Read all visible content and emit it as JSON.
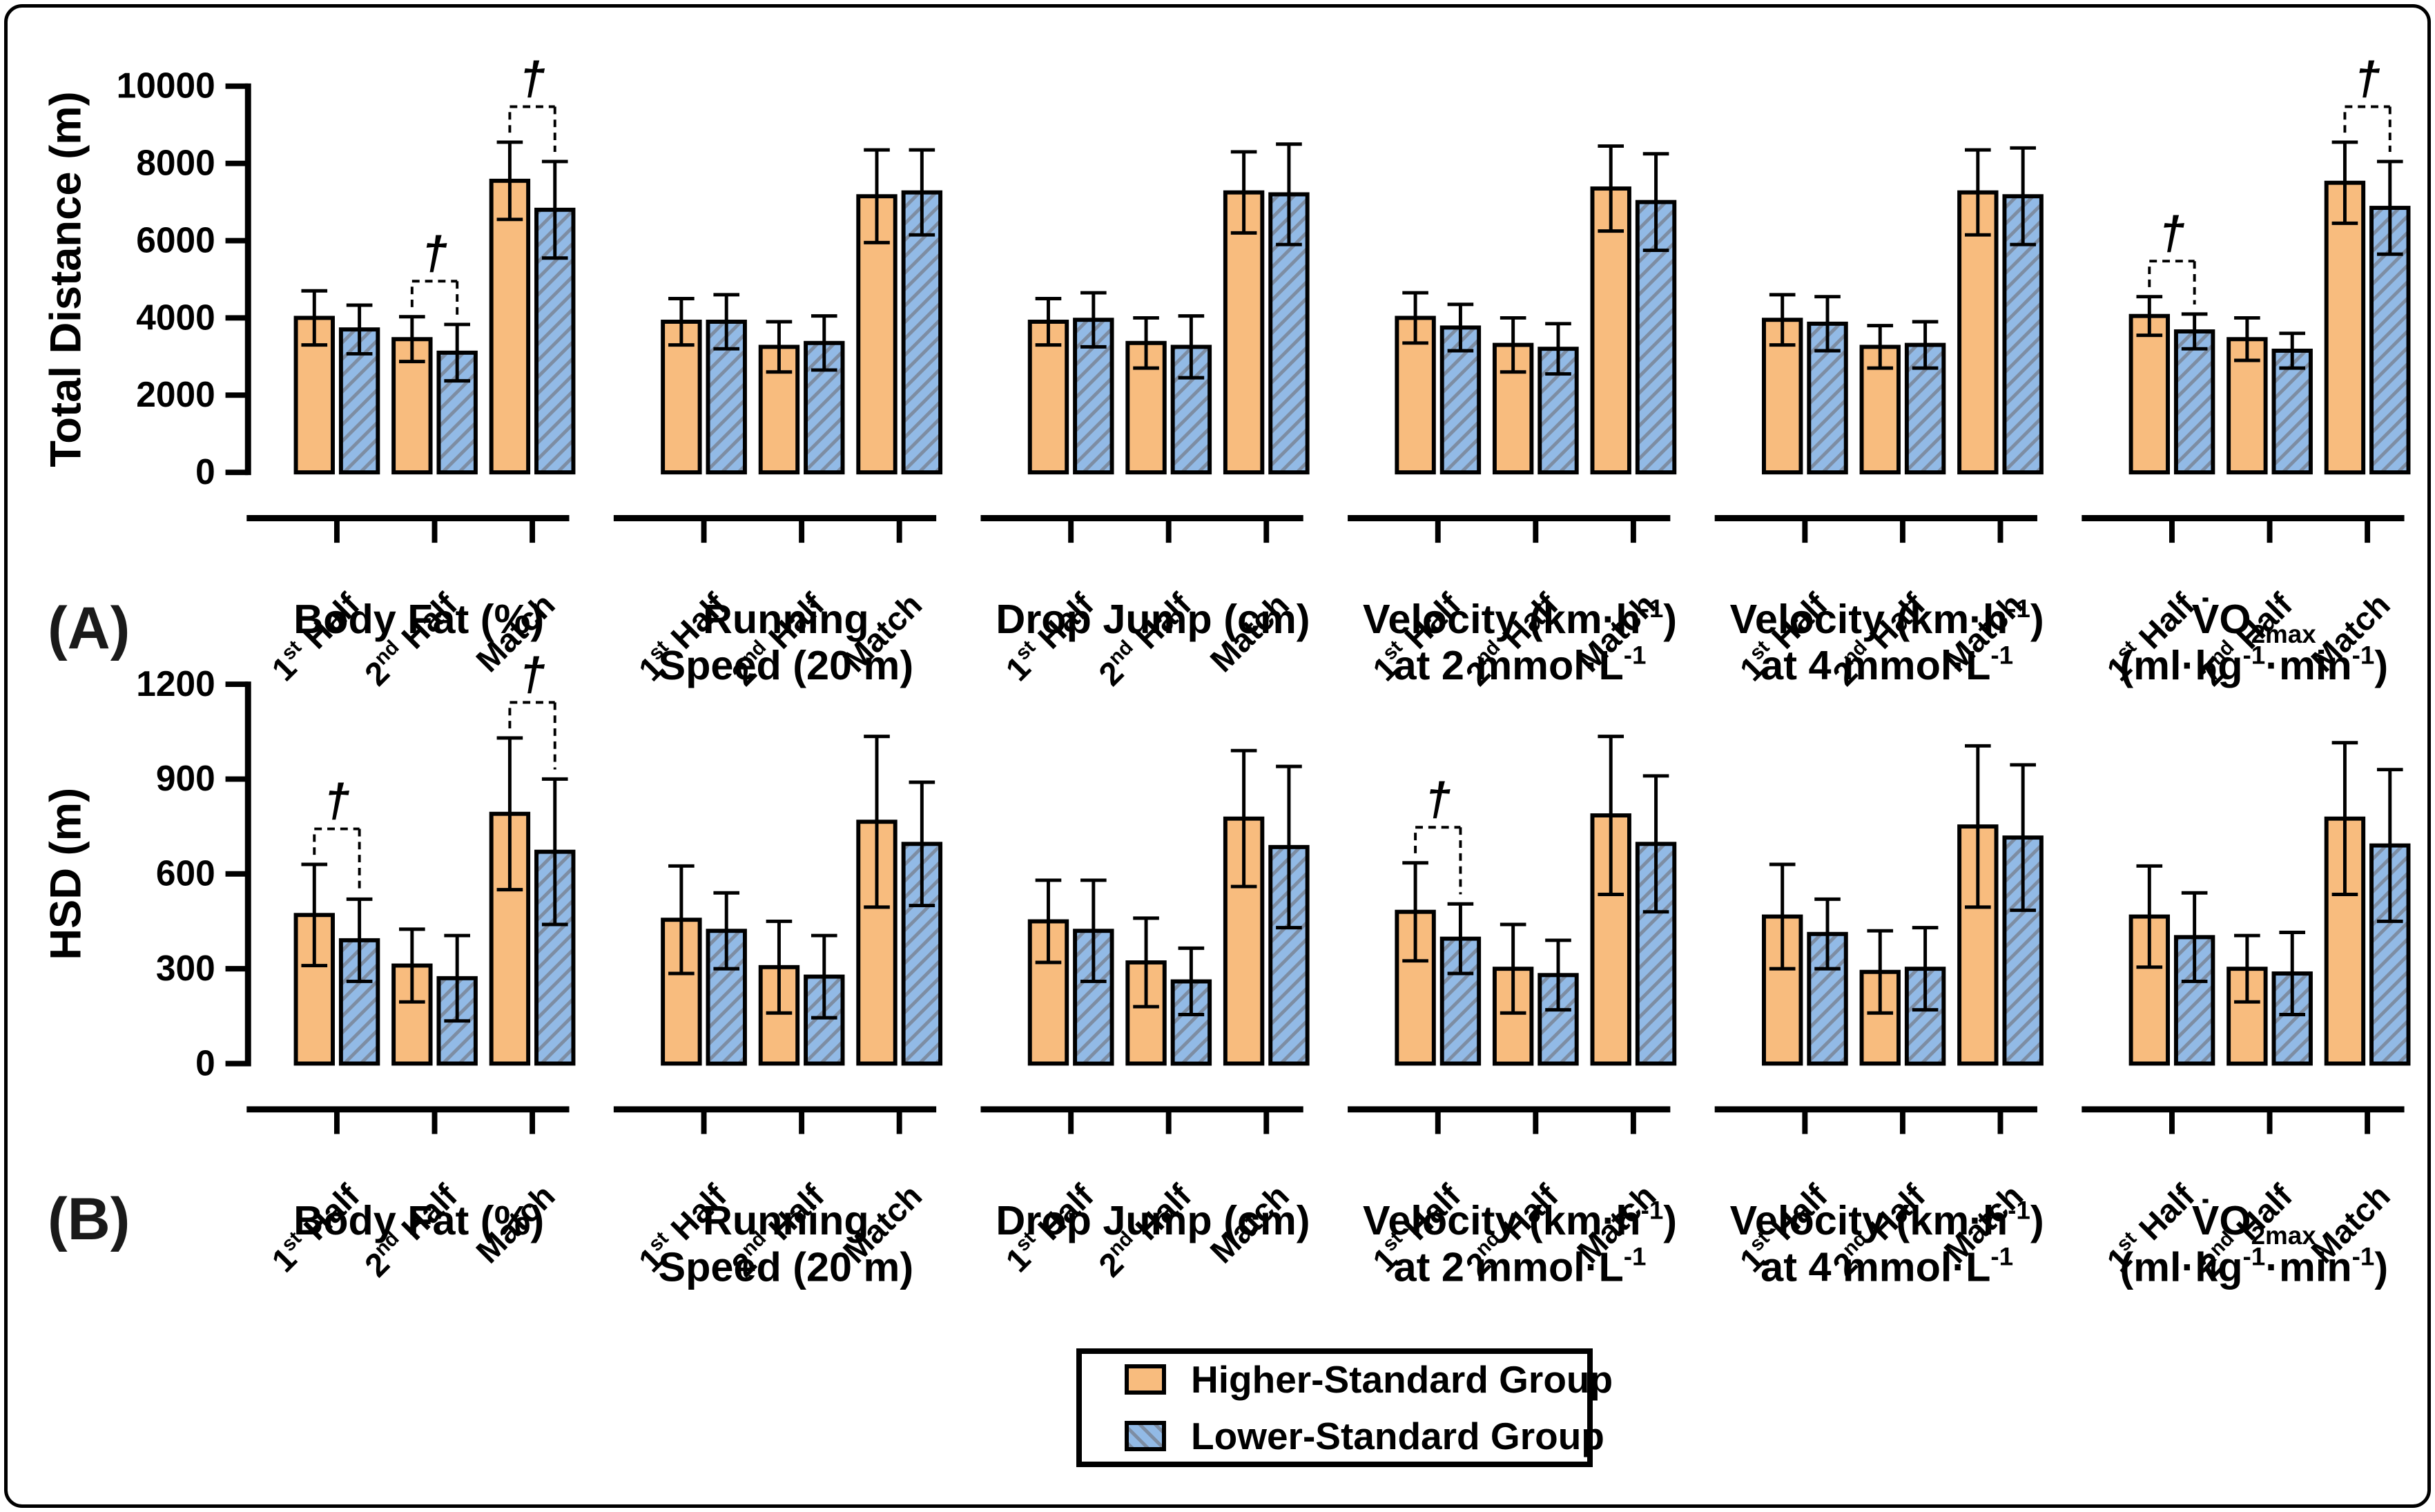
{
  "figure": {
    "row_labels": {
      "a": "(A)",
      "b": "(B)"
    },
    "legend": {
      "position": "bottom-center",
      "entries": [
        {
          "label": "Higher-Standard Group",
          "swatch": "solid-orange"
        },
        {
          "label": "Lower-Standard Group",
          "swatch": "hatched-blue"
        }
      ]
    },
    "colors": {
      "higher_fill": "#F8BC7E",
      "lower_fill": "#92BAE6",
      "lower_hatch": "#7D8DA3",
      "outline": "#000000"
    },
    "significance_symbol": "†"
  },
  "chart_data": {
    "type": "bar",
    "layout": {
      "rows": 2,
      "cols": 6,
      "grid": false,
      "legend_position": "bottom-center"
    },
    "groups": [
      "Higher-Standard Group",
      "Lower-Standard Group"
    ],
    "categories": [
      {
        "plain": "1st Half",
        "rich": [
          "1",
          {
            "sup": "st"
          },
          " Half"
        ]
      },
      {
        "plain": "2nd Half",
        "rich": [
          "2",
          {
            "sup": "nd"
          },
          " Half"
        ]
      },
      {
        "plain": "Match",
        "rich": [
          "Match"
        ]
      }
    ],
    "rows": [
      {
        "id": "A",
        "ylabel": "Total Distance (m)",
        "ylim": [
          0,
          10000
        ],
        "yticks": [
          0,
          2000,
          4000,
          6000,
          8000,
          10000
        ],
        "panels": [
          {
            "name": "body-fat",
            "title": {
              "plain": "Body Fat (%)",
              "lines": [
                [
                  "Body Fat (%)"
                ]
              ]
            },
            "series": [
              {
                "name": "Higher-Standard Group",
                "values": [
                  4000,
                  3450,
                  7550
                ],
                "errors": [
                  700,
                  580,
                  1000
                ]
              },
              {
                "name": "Lower-Standard Group",
                "values": [
                  3700,
                  3100,
                  6800
                ],
                "errors": [
                  630,
                  730,
                  1250
                ]
              }
            ],
            "sig_daggers": [
              1,
              2
            ]
          },
          {
            "name": "running-speed",
            "title": {
              "plain": "Running Speed (20 m)",
              "lines": [
                [
                  "Running"
                ],
                [
                  "Speed (20 m)"
                ]
              ]
            },
            "series": [
              {
                "name": "Higher-Standard Group",
                "values": [
                  3900,
                  3250,
                  7150
                ],
                "errors": [
                  600,
                  650,
                  1200
                ]
              },
              {
                "name": "Lower-Standard Group",
                "values": [
                  3900,
                  3350,
                  7250
                ],
                "errors": [
                  700,
                  700,
                  1100
                ]
              }
            ],
            "sig_daggers": []
          },
          {
            "name": "drop-jump",
            "title": {
              "plain": "Drop Jump (cm)",
              "lines": [
                [
                  "Drop Jump (cm)"
                ]
              ]
            },
            "series": [
              {
                "name": "Higher-Standard Group",
                "values": [
                  3900,
                  3350,
                  7250
                ],
                "errors": [
                  600,
                  650,
                  1050
                ]
              },
              {
                "name": "Lower-Standard Group",
                "values": [
                  3950,
                  3250,
                  7200
                ],
                "errors": [
                  700,
                  800,
                  1300
                ]
              }
            ],
            "sig_daggers": []
          },
          {
            "name": "velocity-2mmol",
            "title": {
              "plain": "Velocity (km·h-1) at 2 mmol·L-1",
              "lines": [
                [
                  "Velocity (km·h",
                  {
                    "sup": "-1"
                  },
                  ")"
                ],
                [
                  "at 2 mmol·L",
                  {
                    "sup": "-1"
                  }
                ]
              ]
            },
            "series": [
              {
                "name": "Higher-Standard Group",
                "values": [
                  4000,
                  3300,
                  7350
                ],
                "errors": [
                  650,
                  700,
                  1100
                ]
              },
              {
                "name": "Lower-Standard Group",
                "values": [
                  3750,
                  3200,
                  7000
                ],
                "errors": [
                  600,
                  650,
                  1250
                ]
              }
            ],
            "sig_daggers": []
          },
          {
            "name": "velocity-4mmol",
            "title": {
              "plain": "Velocity (km·h-1) at 4 mmol·L-1",
              "lines": [
                [
                  "Velocity (km·h",
                  {
                    "sup": "-1"
                  },
                  ")"
                ],
                [
                  "at 4 mmol·L",
                  {
                    "sup": "-1"
                  }
                ]
              ]
            },
            "series": [
              {
                "name": "Higher-Standard Group",
                "values": [
                  3950,
                  3250,
                  7250
                ],
                "errors": [
                  650,
                  550,
                  1100
                ]
              },
              {
                "name": "Lower-Standard Group",
                "values": [
                  3850,
                  3300,
                  7150
                ],
                "errors": [
                  700,
                  600,
                  1250
                ]
              }
            ],
            "sig_daggers": []
          },
          {
            "name": "vo2max",
            "title": {
              "plain": "V̇O2max (ml·kg-1·min-1)",
              "lines": [
                [
                  "V̇O",
                  {
                    "sub": "2max"
                  }
                ],
                [
                  "(ml·kg",
                  {
                    "sup": "-1"
                  },
                  "·min",
                  {
                    "sup": "-1"
                  },
                  ")"
                ]
              ]
            },
            "series": [
              {
                "name": "Higher-Standard Group",
                "values": [
                  4050,
                  3450,
                  7500
                ],
                "errors": [
                  500,
                  550,
                  1050
                ]
              },
              {
                "name": "Lower-Standard Group",
                "values": [
                  3650,
                  3150,
                  6850
                ],
                "errors": [
                  450,
                  450,
                  1200
                ]
              }
            ],
            "sig_daggers": [
              0,
              2
            ]
          }
        ]
      },
      {
        "id": "B",
        "ylabel": "HSD (m)",
        "ylim": [
          0,
          1200
        ],
        "yticks": [
          0,
          300,
          600,
          900,
          1200
        ],
        "panels": [
          {
            "name": "body-fat",
            "title": {
              "plain": "Body Fat (%)",
              "lines": [
                [
                  "Body Fat (%)"
                ]
              ]
            },
            "series": [
              {
                "name": "Higher-Standard Group",
                "values": [
                  470,
                  310,
                  790
                ],
                "errors": [
                  160,
                  115,
                  240
                ]
              },
              {
                "name": "Lower-Standard Group",
                "values": [
                  390,
                  270,
                  670
                ],
                "errors": [
                  130,
                  135,
                  230
                ]
              }
            ],
            "sig_daggers": [
              0,
              2
            ]
          },
          {
            "name": "running-speed",
            "title": {
              "plain": "Running Speed (20 m)",
              "lines": [
                [
                  "Running"
                ],
                [
                  "Speed (20 m)"
                ]
              ]
            },
            "series": [
              {
                "name": "Higher-Standard Group",
                "values": [
                  455,
                  305,
                  765
                ],
                "errors": [
                  170,
                  145,
                  270
                ]
              },
              {
                "name": "Lower-Standard Group",
                "values": [
                  420,
                  275,
                  695
                ],
                "errors": [
                  120,
                  130,
                  195
                ]
              }
            ],
            "sig_daggers": []
          },
          {
            "name": "drop-jump",
            "title": {
              "plain": "Drop Jump (cm)",
              "lines": [
                [
                  "Drop Jump (cm)"
                ]
              ]
            },
            "series": [
              {
                "name": "Higher-Standard Group",
                "values": [
                  450,
                  320,
                  775
                ],
                "errors": [
                  130,
                  140,
                  215
                ]
              },
              {
                "name": "Lower-Standard Group",
                "values": [
                  420,
                  260,
                  685
                ],
                "errors": [
                  160,
                  105,
                  255
                ]
              }
            ],
            "sig_daggers": []
          },
          {
            "name": "velocity-2mmol",
            "title": {
              "plain": "Velocity (km·h-1) at 2 mmol·L-1",
              "lines": [
                [
                  "Velocity (km·h",
                  {
                    "sup": "-1"
                  },
                  ")"
                ],
                [
                  "at 2 mmol·L",
                  {
                    "sup": "-1"
                  }
                ]
              ]
            },
            "series": [
              {
                "name": "Higher-Standard Group",
                "values": [
                  480,
                  300,
                  785
                ],
                "errors": [
                  155,
                  140,
                  250
                ]
              },
              {
                "name": "Lower-Standard Group",
                "values": [
                  395,
                  280,
                  695
                ],
                "errors": [
                  110,
                  110,
                  215
                ]
              }
            ],
            "sig_daggers": [
              0
            ]
          },
          {
            "name": "velocity-4mmol",
            "title": {
              "plain": "Velocity (km·h-1) at 4 mmol·L-1",
              "lines": [
                [
                  "Velocity (km·h",
                  {
                    "sup": "-1"
                  },
                  ")"
                ],
                [
                  "at 4 mmol·L",
                  {
                    "sup": "-1"
                  }
                ]
              ]
            },
            "series": [
              {
                "name": "Higher-Standard Group",
                "values": [
                  465,
                  290,
                  750
                ],
                "errors": [
                  165,
                  130,
                  255
                ]
              },
              {
                "name": "Lower-Standard Group",
                "values": [
                  410,
                  300,
                  715
                ],
                "errors": [
                  110,
                  130,
                  230
                ]
              }
            ],
            "sig_daggers": []
          },
          {
            "name": "vo2max",
            "title": {
              "plain": "V̇O2max (ml·kg-1·min-1)",
              "lines": [
                [
                  "V̇O",
                  {
                    "sub": "2max"
                  }
                ],
                [
                  "(ml·kg",
                  {
                    "sup": "-1"
                  },
                  "·min",
                  {
                    "sup": "-1"
                  },
                  ")"
                ]
              ]
            },
            "series": [
              {
                "name": "Higher-Standard Group",
                "values": [
                  465,
                  300,
                  775
                ],
                "errors": [
                  160,
                  105,
                  240
                ]
              },
              {
                "name": "Lower-Standard Group",
                "values": [
                  400,
                  285,
                  690
                ],
                "errors": [
                  140,
                  130,
                  240
                ]
              }
            ],
            "sig_daggers": []
          }
        ]
      }
    ]
  }
}
